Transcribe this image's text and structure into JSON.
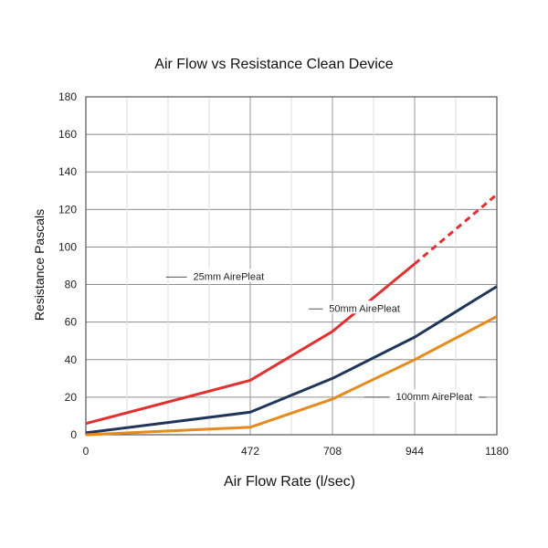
{
  "chart_data": {
    "type": "line",
    "title": "Air Flow vs Resistance Clean Device",
    "xlabel": "Air Flow Rate (l/sec)",
    "ylabel": "Resistance Pascals",
    "x": [
      0,
      472,
      708,
      944,
      1180
    ],
    "x_tick_labels": [
      "0",
      "472",
      "708",
      "944",
      "1180"
    ],
    "xlim": [
      0,
      1180
    ],
    "ylim": [
      0,
      180
    ],
    "y_ticks": [
      0,
      20,
      40,
      60,
      80,
      100,
      120,
      140,
      160,
      180
    ],
    "grid": true,
    "legend": "inline labels",
    "series": [
      {
        "name": "25mm AirePleat",
        "color": "#e03030",
        "values": [
          6,
          29,
          55,
          91,
          128
        ],
        "dashed_from_x": 944
      },
      {
        "name": "50mm AirePleat",
        "color": "#1f3658",
        "values": [
          1,
          12,
          30,
          52,
          79
        ]
      },
      {
        "name": "100mm AirePleat",
        "color": "#e58a1f",
        "values": [
          0,
          4,
          19,
          40,
          63
        ]
      }
    ]
  }
}
